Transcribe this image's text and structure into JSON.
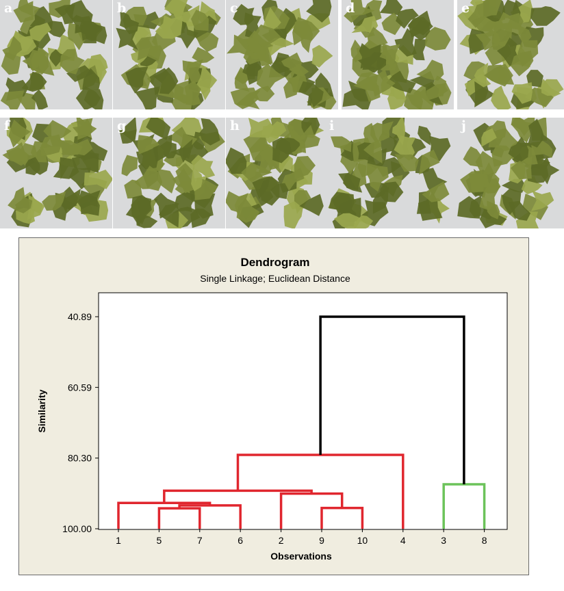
{
  "photos": [
    {
      "label": "a"
    },
    {
      "label": "b"
    },
    {
      "label": "c"
    },
    {
      "label": "d"
    },
    {
      "label": "e"
    },
    {
      "label": "f"
    },
    {
      "label": "g"
    },
    {
      "label": "h"
    },
    {
      "label": "i"
    },
    {
      "label": "j"
    }
  ],
  "colors": {
    "leaf": "#7d8a3a",
    "leaf_dark": "#5c6a26",
    "leaf_light": "#9aa74d",
    "photo_background": "#d9dadb",
    "panel_background": "#f0ede0",
    "cluster_red": "#e0262e",
    "cluster_green": "#6cc35a",
    "root_black": "#000000"
  },
  "chart_data": {
    "type": "dendrogram",
    "title": "Dendrogram",
    "subtitle": "Single Linkage; Euclidean Distance",
    "xlabel": "Observations",
    "ylabel": "Similarity",
    "yticks": [
      "40.89",
      "60.59",
      "80.30",
      "100.00"
    ],
    "ylim": [
      40.89,
      100.0
    ],
    "leaf_order": [
      "1",
      "5",
      "7",
      "6",
      "2",
      "9",
      "10",
      "4",
      "3",
      "8"
    ],
    "merges": [
      {
        "left": "5",
        "right": "7",
        "similarity": 94.3,
        "color": "red"
      },
      {
        "left": "9",
        "right": "10",
        "similarity": 94.2,
        "color": "red"
      },
      {
        "left": "5-7",
        "right": "6",
        "similarity": 93.5,
        "color": "red"
      },
      {
        "left": "1",
        "right": "5-7-6",
        "similarity": 92.8,
        "color": "red"
      },
      {
        "left": "2",
        "right": "9-10",
        "similarity": 90.2,
        "color": "red"
      },
      {
        "left": "1-5-7-6",
        "right": "2-9-10",
        "similarity": 89.4,
        "color": "red"
      },
      {
        "left": "3",
        "right": "8",
        "similarity": 87.6,
        "color": "green"
      },
      {
        "left": "1-5-7-6-2-9-10",
        "right": "4",
        "similarity": 79.4,
        "color": "red"
      },
      {
        "left": "1-5-7-6-2-9-10-4",
        "right": "3-8",
        "similarity": 40.89,
        "color": "black"
      }
    ]
  }
}
